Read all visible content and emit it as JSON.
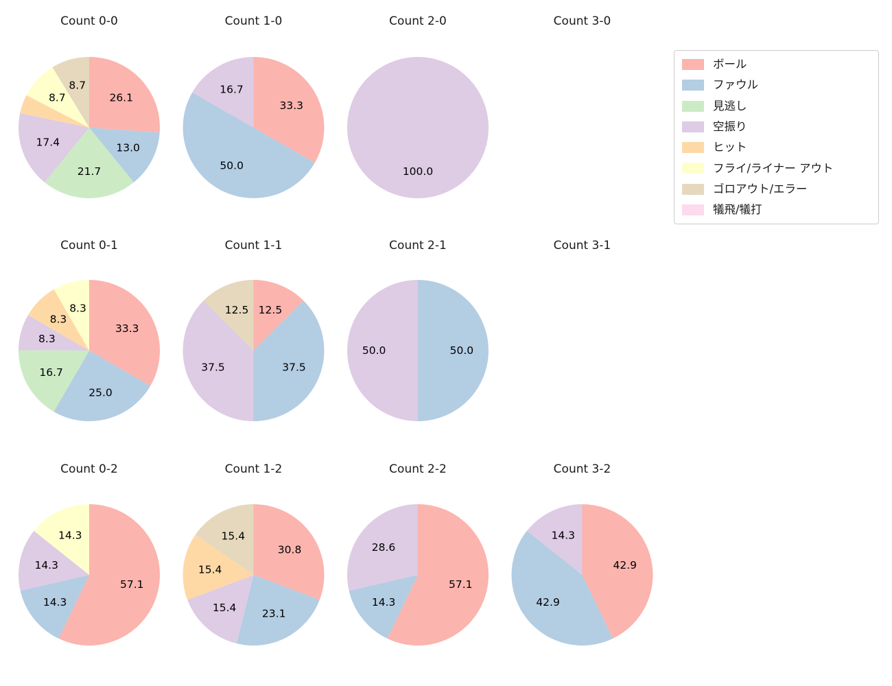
{
  "figure": {
    "background": "#ffffff"
  },
  "legend": {
    "position": "upper-right",
    "border_color": "#cccccc",
    "items": [
      {
        "label": "ボール",
        "color": "#fbb4ae"
      },
      {
        "label": "ファウル",
        "color": "#b3cde3"
      },
      {
        "label": "見逃し",
        "color": "#ccebc5"
      },
      {
        "label": "空振り",
        "color": "#decbe4"
      },
      {
        "label": "ヒット",
        "color": "#fed9a6"
      },
      {
        "label": "フライ/ライナー アウト",
        "color": "#ffffcc"
      },
      {
        "label": "ゴロアウト/エラー",
        "color": "#e5d8bd"
      },
      {
        "label": "犠飛/犠打",
        "color": "#fddaec"
      }
    ]
  },
  "chart_data": [
    {
      "type": "pie",
      "title": "Count 0-0",
      "unit": "percent",
      "start_angle": 90,
      "direction": "clockwise",
      "slices": [
        {
          "category": "ボール",
          "value": 26.1,
          "label": "26.1"
        },
        {
          "category": "ファウル",
          "value": 13.0,
          "label": "13.0"
        },
        {
          "category": "見逃し",
          "value": 21.7,
          "label": "21.7"
        },
        {
          "category": "空振り",
          "value": 17.4,
          "label": "17.4"
        },
        {
          "category": "ヒット",
          "value": 4.3,
          "label": ""
        },
        {
          "category": "フライ/ライナー アウト",
          "value": 8.7,
          "label": "8.7"
        },
        {
          "category": "ゴロアウト/エラー",
          "value": 8.7,
          "label": "8.7"
        }
      ]
    },
    {
      "type": "pie",
      "title": "Count 1-0",
      "unit": "percent",
      "start_angle": 90,
      "direction": "clockwise",
      "slices": [
        {
          "category": "ボール",
          "value": 33.3,
          "label": "33.3"
        },
        {
          "category": "ファウル",
          "value": 50.0,
          "label": "50.0"
        },
        {
          "category": "空振り",
          "value": 16.7,
          "label": "16.7"
        }
      ]
    },
    {
      "type": "pie",
      "title": "Count 2-0",
      "unit": "percent",
      "start_angle": 90,
      "direction": "clockwise",
      "slices": [
        {
          "category": "空振り",
          "value": 100.0,
          "label": "100.0"
        }
      ]
    },
    {
      "type": "pie",
      "title": "Count 3-0",
      "unit": "percent",
      "start_angle": 90,
      "direction": "clockwise",
      "slices": []
    },
    {
      "type": "pie",
      "title": "Count 0-1",
      "unit": "percent",
      "start_angle": 90,
      "direction": "clockwise",
      "slices": [
        {
          "category": "ボール",
          "value": 33.3,
          "label": "33.3"
        },
        {
          "category": "ファウル",
          "value": 25.0,
          "label": "25.0"
        },
        {
          "category": "見逃し",
          "value": 16.7,
          "label": "16.7"
        },
        {
          "category": "空振り",
          "value": 8.3,
          "label": "8.3"
        },
        {
          "category": "ヒット",
          "value": 8.3,
          "label": "8.3"
        },
        {
          "category": "フライ/ライナー アウト",
          "value": 8.3,
          "label": "8.3"
        }
      ]
    },
    {
      "type": "pie",
      "title": "Count 1-1",
      "unit": "percent",
      "start_angle": 90,
      "direction": "clockwise",
      "slices": [
        {
          "category": "ボール",
          "value": 12.5,
          "label": "12.5"
        },
        {
          "category": "ファウル",
          "value": 37.5,
          "label": "37.5"
        },
        {
          "category": "空振り",
          "value": 37.5,
          "label": "37.5"
        },
        {
          "category": "ゴロアウト/エラー",
          "value": 12.5,
          "label": "12.5"
        }
      ]
    },
    {
      "type": "pie",
      "title": "Count 2-1",
      "unit": "percent",
      "start_angle": 90,
      "direction": "clockwise",
      "slices": [
        {
          "category": "ファウル",
          "value": 50.0,
          "label": "50.0"
        },
        {
          "category": "空振り",
          "value": 50.0,
          "label": "50.0"
        }
      ]
    },
    {
      "type": "pie",
      "title": "Count 3-1",
      "unit": "percent",
      "start_angle": 90,
      "direction": "clockwise",
      "slices": []
    },
    {
      "type": "pie",
      "title": "Count 0-2",
      "unit": "percent",
      "start_angle": 90,
      "direction": "clockwise",
      "slices": [
        {
          "category": "ボール",
          "value": 57.1,
          "label": "57.1"
        },
        {
          "category": "ファウル",
          "value": 14.3,
          "label": "14.3"
        },
        {
          "category": "空振り",
          "value": 14.3,
          "label": "14.3"
        },
        {
          "category": "フライ/ライナー アウト",
          "value": 14.3,
          "label": "14.3"
        }
      ]
    },
    {
      "type": "pie",
      "title": "Count 1-2",
      "unit": "percent",
      "start_angle": 90,
      "direction": "clockwise",
      "slices": [
        {
          "category": "ボール",
          "value": 30.8,
          "label": "30.8"
        },
        {
          "category": "ファウル",
          "value": 23.1,
          "label": "23.1"
        },
        {
          "category": "空振り",
          "value": 15.4,
          "label": "15.4"
        },
        {
          "category": "ヒット",
          "value": 15.4,
          "label": "15.4"
        },
        {
          "category": "ゴロアウト/エラー",
          "value": 15.4,
          "label": "15.4"
        }
      ]
    },
    {
      "type": "pie",
      "title": "Count 2-2",
      "unit": "percent",
      "start_angle": 90,
      "direction": "clockwise",
      "slices": [
        {
          "category": "ボール",
          "value": 57.1,
          "label": "57.1"
        },
        {
          "category": "ファウル",
          "value": 14.3,
          "label": "14.3"
        },
        {
          "category": "空振り",
          "value": 28.6,
          "label": "28.6"
        }
      ]
    },
    {
      "type": "pie",
      "title": "Count 3-2",
      "unit": "percent",
      "start_angle": 90,
      "direction": "clockwise",
      "slices": [
        {
          "category": "ボール",
          "value": 42.9,
          "label": "42.9"
        },
        {
          "category": "ファウル",
          "value": 42.9,
          "label": "42.9"
        },
        {
          "category": "空振り",
          "value": 14.3,
          "label": "14.3"
        }
      ]
    }
  ]
}
